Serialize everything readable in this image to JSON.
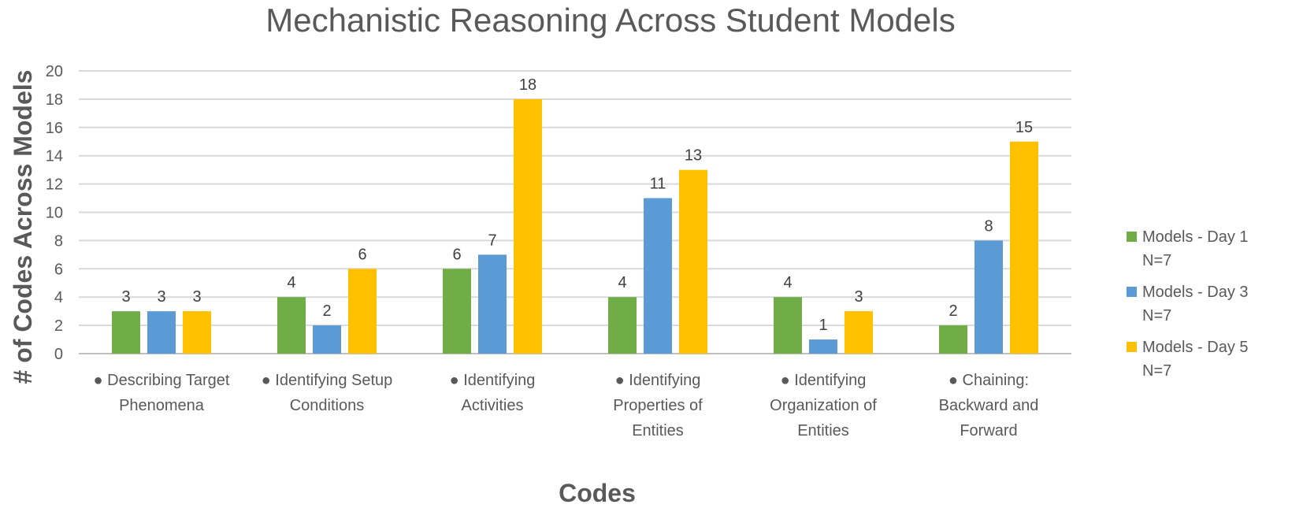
{
  "chart_data": {
    "type": "bar",
    "title": "Mechanistic Reasoning Across Student Models",
    "xlabel": "Codes",
    "ylabel": "# of Codes Across Models",
    "ylim": [
      0,
      20
    ],
    "yticks": [
      0,
      2,
      4,
      6,
      8,
      10,
      12,
      14,
      16,
      18,
      20
    ],
    "grid": true,
    "legend_position": "right",
    "categories": [
      [
        "● Describing Target",
        "Phenomena"
      ],
      [
        "● Identifying Setup",
        "Conditions"
      ],
      [
        "● Identifying",
        "Activities"
      ],
      [
        "● Identifying",
        "Properties of",
        "Entities"
      ],
      [
        "● Identifying",
        "Organization of",
        "Entities"
      ],
      [
        "● Chaining:",
        "Backward and",
        "Forward"
      ]
    ],
    "series": [
      {
        "name": "Models - Day 1\nN=7",
        "color": "#70ad47",
        "values": [
          3,
          4,
          6,
          4,
          4,
          2
        ]
      },
      {
        "name": "Models - Day 3\nN=7",
        "color": "#5b9bd5",
        "values": [
          3,
          2,
          7,
          11,
          1,
          8
        ]
      },
      {
        "name": "Models - Day 5\nN=7",
        "color": "#ffc000",
        "values": [
          3,
          6,
          18,
          13,
          3,
          15
        ]
      }
    ],
    "data_labels": true
  }
}
